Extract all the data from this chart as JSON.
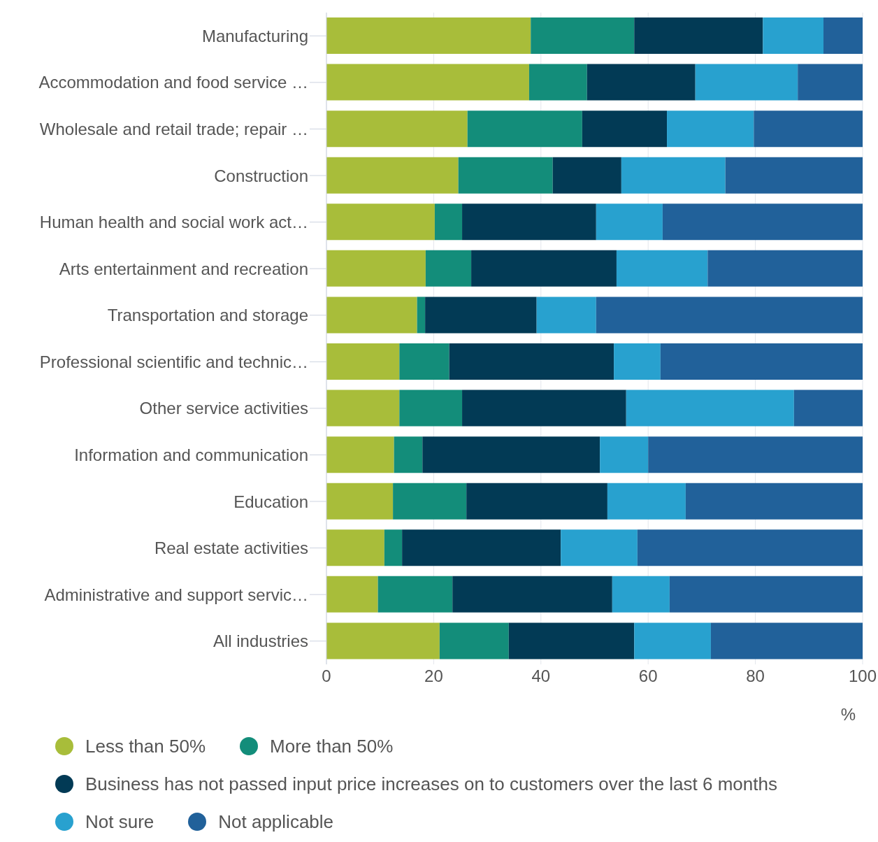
{
  "chart_data": {
    "type": "bar",
    "orientation": "horizontal",
    "stacked": true,
    "xlabel": "%",
    "categories": [
      "Manufacturing",
      "Accommodation and food service …",
      "Wholesale and retail trade; repair …",
      "Construction",
      "Human health and social work act…",
      "Arts entertainment and recreation",
      "Transportation and storage",
      "Professional scientific and technic…",
      "Other service activities",
      "Information and communication",
      "Education",
      "Real estate activities",
      "Administrative and support servic…",
      "All industries"
    ],
    "series": [
      {
        "name": "Less than 50%",
        "color": "#a8bd3a",
        "values": [
          38.1,
          37.8,
          26.3,
          24.6,
          20.2,
          18.5,
          16.9,
          13.6,
          13.6,
          12.6,
          12.4,
          10.8,
          9.6,
          21.1
        ]
      },
      {
        "name": "More than 50%",
        "color": "#138d7a",
        "values": [
          19.3,
          10.8,
          21.4,
          17.6,
          5.1,
          8.5,
          1.5,
          9.3,
          11.7,
          5.3,
          13.7,
          3.3,
          13.9,
          12.9
        ]
      },
      {
        "name": "Business has not passed input price increases on to customers over the last 6 months",
        "color": "#023a55",
        "values": [
          24.0,
          20.2,
          15.8,
          12.8,
          25.0,
          27.1,
          20.8,
          30.7,
          30.6,
          33.1,
          26.3,
          29.6,
          29.8,
          23.4
        ]
      },
      {
        "name": "Not sure",
        "color": "#28a1cf",
        "values": [
          11.3,
          19.1,
          16.2,
          19.4,
          12.4,
          17.0,
          11.1,
          8.7,
          31.3,
          9.0,
          14.6,
          14.3,
          10.7,
          14.3
        ]
      },
      {
        "name": "Not applicable",
        "color": "#21619a",
        "values": [
          7.3,
          12.1,
          20.3,
          25.6,
          37.3,
          28.9,
          49.7,
          37.7,
          12.8,
          40.0,
          33.0,
          42.0,
          36.0,
          28.3
        ]
      }
    ],
    "xlim": [
      0,
      100
    ],
    "xticks": [
      0,
      20,
      40,
      60,
      80,
      100
    ],
    "grid": "x",
    "legend": "bottom"
  }
}
